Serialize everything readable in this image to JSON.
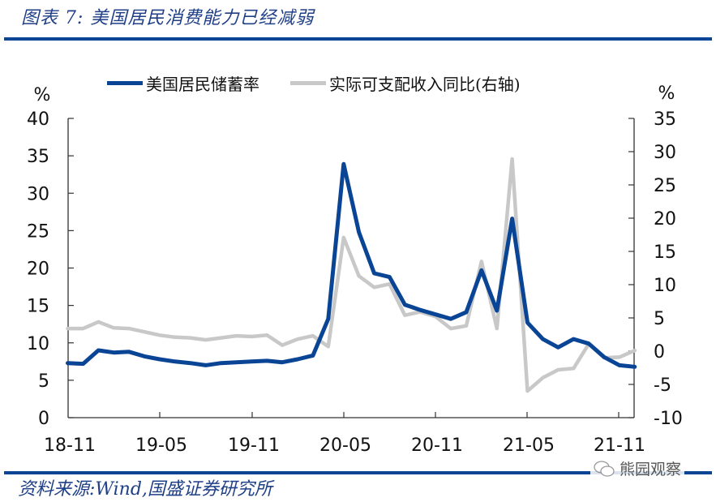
{
  "title": "图表 7:  美国居民消费能力已经减弱",
  "source": "资料来源:Wind,国盛证券研究所",
  "watermark": "熊园观察",
  "colors": {
    "savings": "#0a4595",
    "income": "#c8c8c8",
    "rule": "#0a4595",
    "title": "#1f3f86"
  },
  "chart_data": {
    "type": "line",
    "title": "美国居民消费能力已经减弱",
    "xlabel": "",
    "ylabel_left": "%",
    "ylabel_right": "%",
    "ylim_left": [
      0,
      40
    ],
    "ylim_right": [
      -10,
      35
    ],
    "yticks_left": [
      "0",
      "5",
      "10",
      "15",
      "20",
      "25",
      "30",
      "35",
      "40"
    ],
    "yticks_right": [
      "-10",
      "-5",
      "0",
      "5",
      "10",
      "15",
      "20",
      "25",
      "30",
      "35"
    ],
    "xtick_labels": [
      "18-11",
      "19-05",
      "19-11",
      "20-05",
      "20-11",
      "21-05",
      "21-11"
    ],
    "grid": false,
    "legend_position": "top",
    "x": [
      "18-10",
      "18-11",
      "18-12",
      "19-01",
      "19-02",
      "19-03",
      "19-04",
      "19-05",
      "19-06",
      "19-07",
      "19-08",
      "19-09",
      "19-10",
      "19-11",
      "19-12",
      "20-01",
      "20-02",
      "20-03",
      "20-04",
      "20-05",
      "20-06",
      "20-07",
      "20-08",
      "20-09",
      "20-10",
      "20-11",
      "20-12",
      "21-01",
      "21-02",
      "21-03",
      "21-04",
      "21-05",
      "21-06",
      "21-07",
      "21-08",
      "21-09",
      "21-10",
      "21-11"
    ],
    "series": [
      {
        "name": "美国居民储蓄率",
        "axis": "left",
        "color": "#0a4595",
        "values": [
          7.3,
          7.2,
          9.0,
          8.7,
          8.8,
          8.2,
          7.8,
          7.5,
          7.3,
          7.0,
          7.3,
          7.4,
          7.5,
          7.6,
          7.4,
          7.8,
          8.3,
          13.2,
          33.9,
          24.8,
          19.3,
          18.8,
          15.1,
          14.4,
          13.8,
          13.2,
          14.1,
          19.7,
          14.3,
          26.6,
          12.7,
          10.5,
          9.4,
          10.5,
          9.9,
          8.1,
          7.0,
          6.8
        ]
      },
      {
        "name": "实际可支配收入同比(右轴)",
        "axis": "right",
        "color": "#c8c8c8",
        "values": [
          3.4,
          3.4,
          4.4,
          3.5,
          3.4,
          2.9,
          2.4,
          2.1,
          2.0,
          1.7,
          2.0,
          2.3,
          2.2,
          2.4,
          0.9,
          1.8,
          2.3,
          0.7,
          17.1,
          11.3,
          9.6,
          10.1,
          5.4,
          5.9,
          5.2,
          3.4,
          3.8,
          13.5,
          3.4,
          28.9,
          -6.0,
          -4.0,
          -2.8,
          -2.6,
          1.1,
          -1.0,
          -0.9,
          0.1
        ]
      }
    ]
  },
  "legend": [
    {
      "label": "美国居民储蓄率"
    },
    {
      "label": "实际可支配收入同比(右轴)"
    }
  ]
}
